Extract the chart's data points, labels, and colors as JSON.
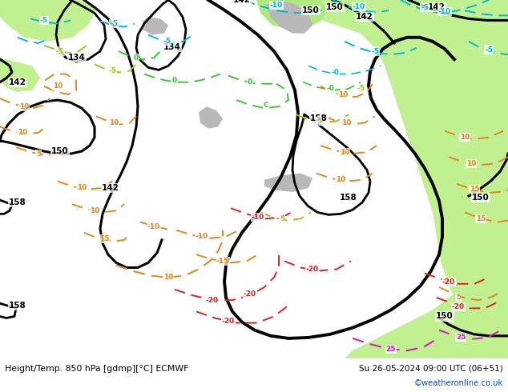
{
  "title_left": "Height/Temp. 850 hPa [gdmp][°C] ECMWF",
  "title_right": "Su 26-05-2024 09:00 UTC (06+51)",
  "copyright": "©weatheronline.co.uk",
  "fig_width": 6.34,
  "fig_height": 4.9,
  "dpi": 100,
  "bg_color": "#ffffff",
  "copyright_color": "#0055cc",
  "gray_bg": "#d0d0d0",
  "light_green": "#c8f0a0",
  "mid_green": "#a8e080",
  "cyan_color": "#00c0d8",
  "green_temp": "#40c840",
  "yellow_green": "#a0d040",
  "orange_color": "#e08820",
  "red_color": "#e02020",
  "pink_color": "#e020c0"
}
